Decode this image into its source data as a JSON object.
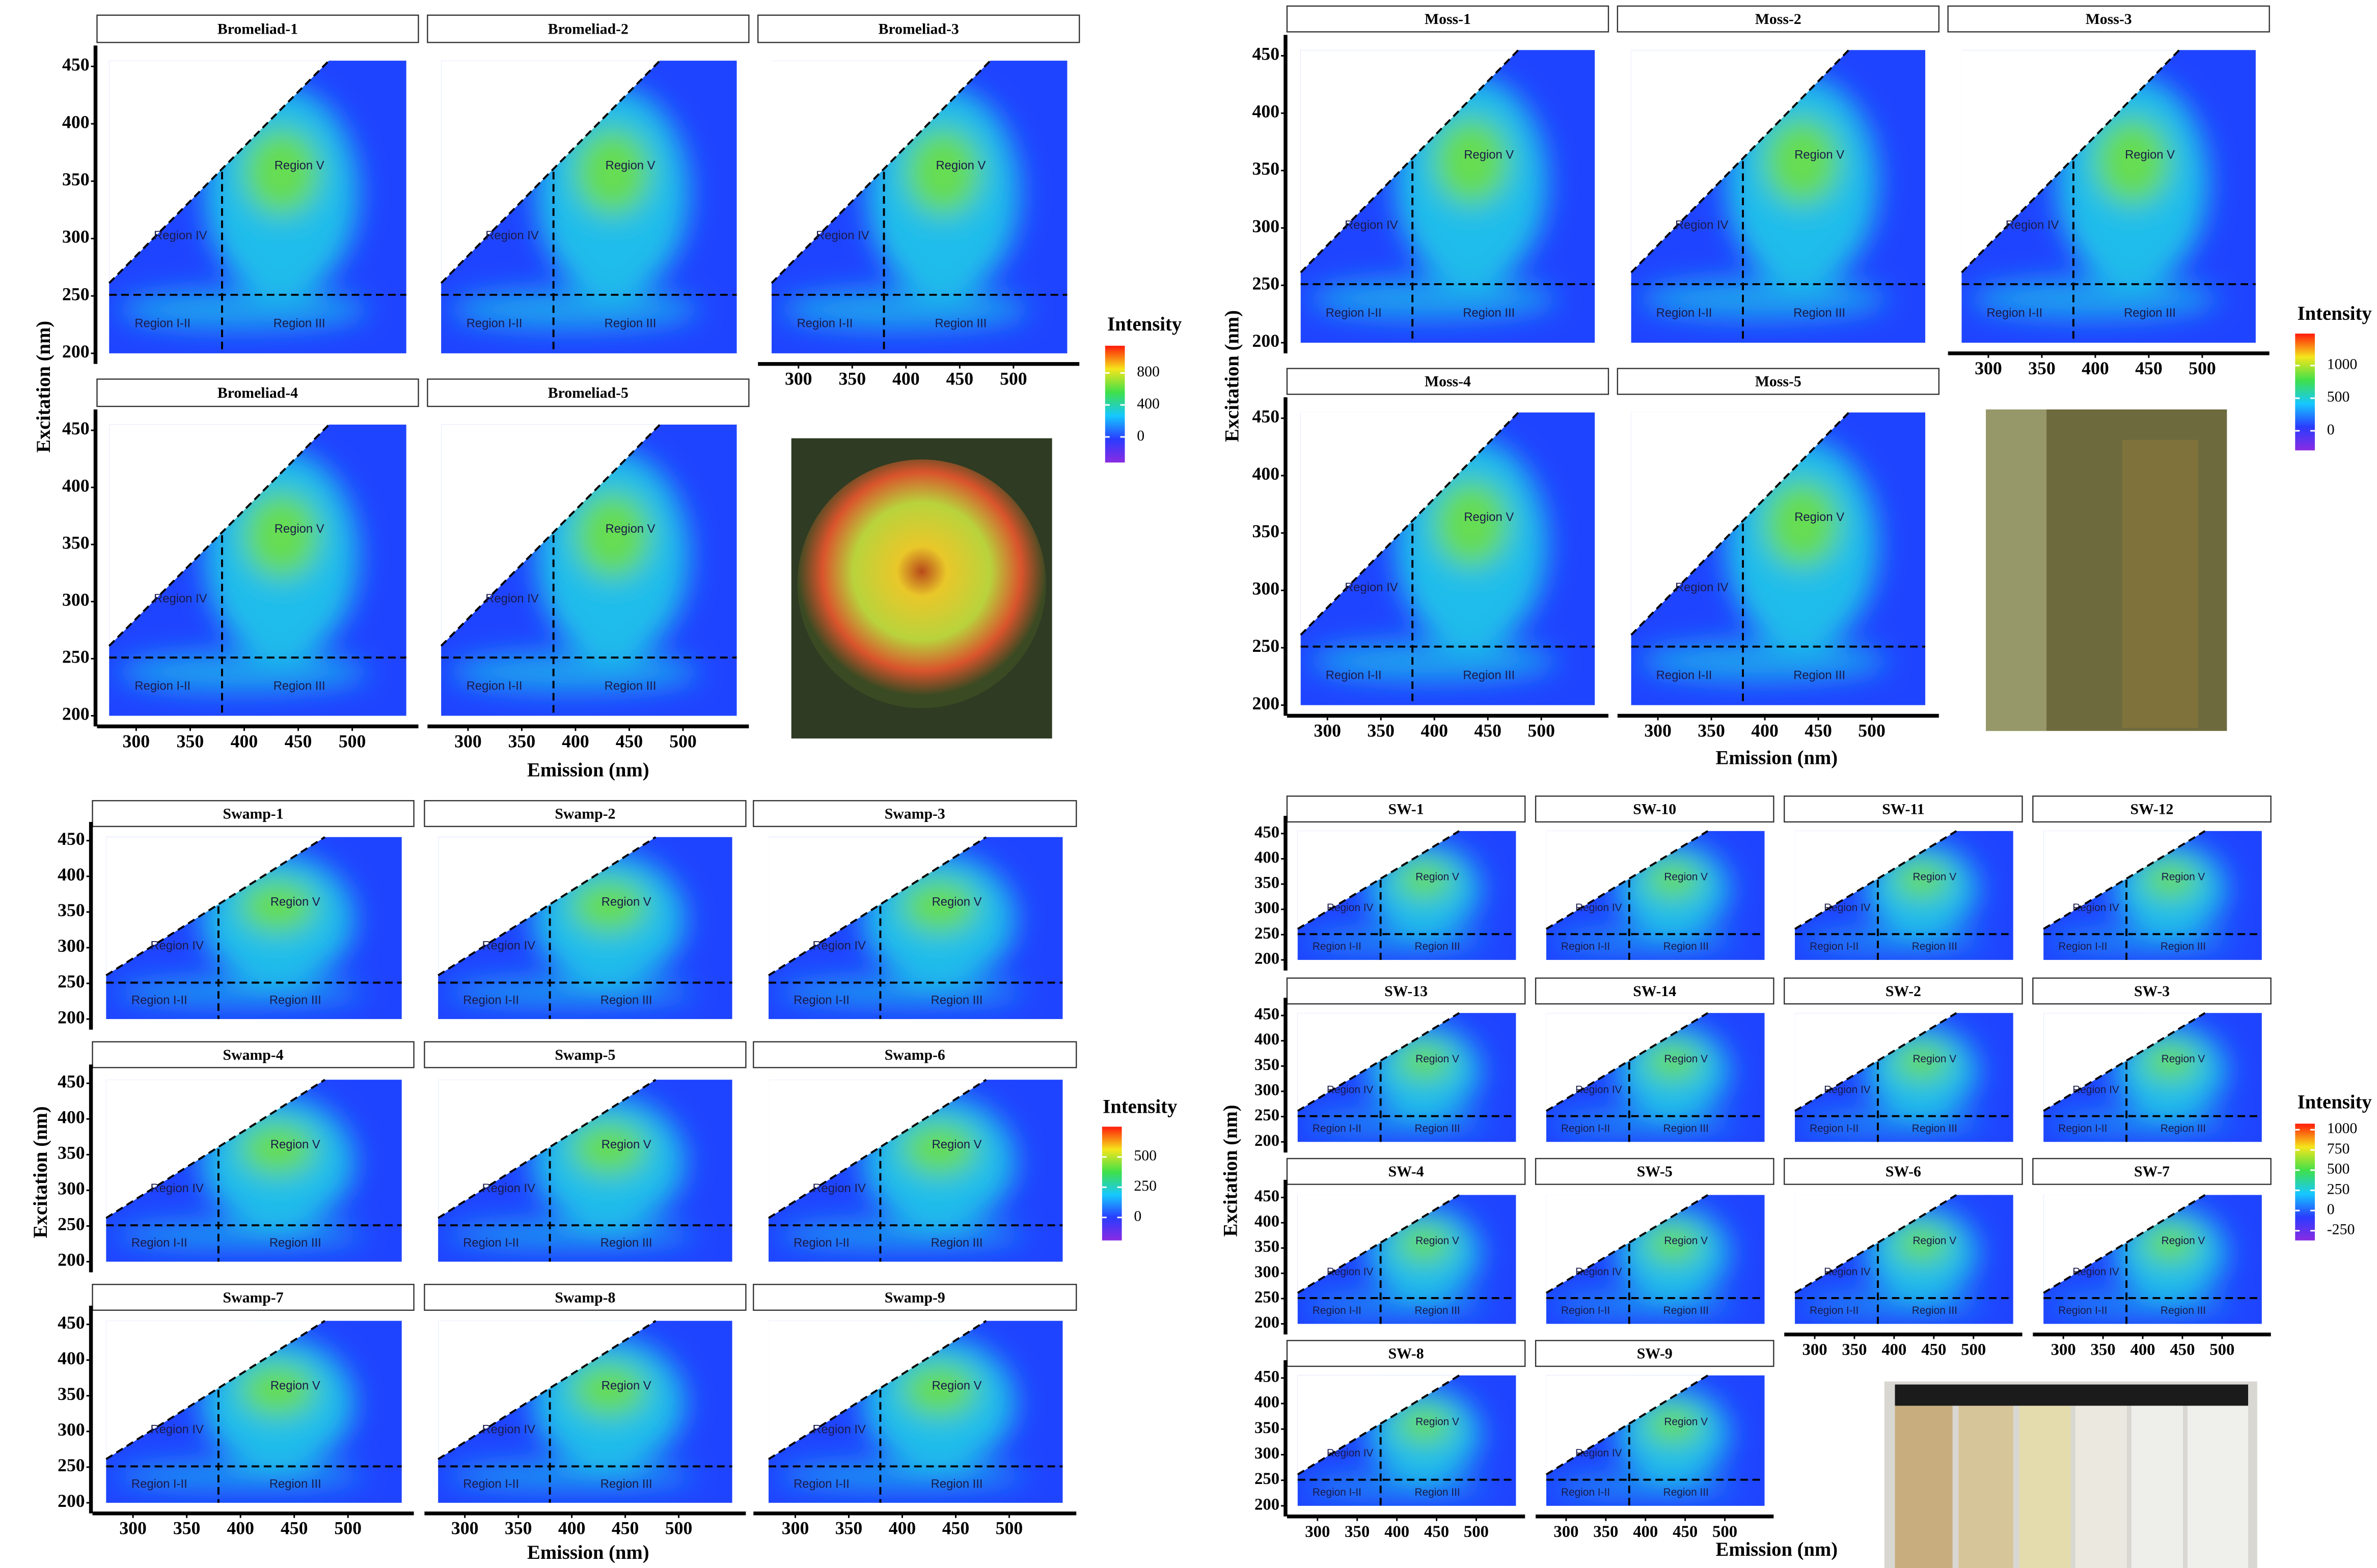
{
  "chart_data": [
    {
      "type": "heatmap",
      "panels": [
        "Bromeliad-1",
        "Bromeliad-2",
        "Bromeliad-3",
        "Bromeliad-4",
        "Bromeliad-5"
      ],
      "xlabel": "Emission (nm)",
      "ylabel": "Excitation (nm)",
      "xlim": [
        275,
        550
      ],
      "ylim": [
        200,
        455
      ],
      "xticks": [
        300,
        350,
        400,
        450,
        500
      ],
      "yticks": [
        200,
        250,
        300,
        350,
        400,
        450
      ],
      "region_labels": [
        "Region V",
        "Region IV",
        "Region I-II",
        "Region III"
      ],
      "colorbar": {
        "title": "Intensity",
        "lim": [
          -320,
          1140
        ],
        "ticks": [
          0,
          400,
          800
        ]
      }
    },
    {
      "type": "heatmap",
      "panels": [
        "Moss-1",
        "Moss-2",
        "Moss-3",
        "Moss-4",
        "Moss-5"
      ],
      "xlabel": "Emission (nm)",
      "ylabel": "Excitation (nm)",
      "xlim": [
        275,
        550
      ],
      "ylim": [
        200,
        455
      ],
      "xticks": [
        300,
        350,
        400,
        450,
        500
      ],
      "yticks": [
        200,
        250,
        300,
        350,
        400,
        450
      ],
      "region_labels": [
        "Region V",
        "Region IV",
        "Region I-II",
        "Region III"
      ],
      "colorbar": {
        "title": "Intensity",
        "lim": [
          -300,
          1490
        ],
        "ticks": [
          0,
          500,
          1000
        ]
      }
    },
    {
      "type": "heatmap",
      "panels": [
        "Swamp-1",
        "Swamp-2",
        "Swamp-3",
        "Swamp-4",
        "Swamp-5",
        "Swamp-6",
        "Swamp-7",
        "Swamp-8",
        "Swamp-9"
      ],
      "xlabel": "Emission (nm)",
      "ylabel": "Excitation (nm)",
      "xlim": [
        275,
        550
      ],
      "ylim": [
        200,
        455
      ],
      "xticks": [
        300,
        350,
        400,
        450,
        500
      ],
      "yticks": [
        200,
        250,
        300,
        350,
        400,
        450
      ],
      "region_labels": [
        "Region V",
        "Region IV",
        "Region I-II",
        "Region III"
      ],
      "colorbar": {
        "title": "Intensity",
        "lim": [
          -190,
          750
        ],
        "ticks": [
          0,
          250,
          500
        ]
      }
    },
    {
      "type": "heatmap",
      "panels": [
        "SW-1",
        "SW-10",
        "SW-11",
        "SW-12",
        "SW-13",
        "SW-14",
        "SW-2",
        "SW-3",
        "SW-4",
        "SW-5",
        "SW-6",
        "SW-7",
        "SW-8",
        "SW-9"
      ],
      "xlabel": "Emission (nm)",
      "ylabel": "Excitation (nm)",
      "xlim": [
        275,
        550
      ],
      "ylim": [
        200,
        455
      ],
      "xticks": [
        300,
        350,
        400,
        450,
        500
      ],
      "yticks": [
        200,
        250,
        300,
        350,
        400,
        450
      ],
      "region_labels": [
        "Region V",
        "Region IV",
        "Region I-II",
        "Region III"
      ],
      "colorbar": {
        "title": "Intensity",
        "lim": [
          -370,
          1075
        ],
        "ticks": [
          -250,
          0,
          250,
          500,
          750,
          1000
        ]
      }
    }
  ]
}
